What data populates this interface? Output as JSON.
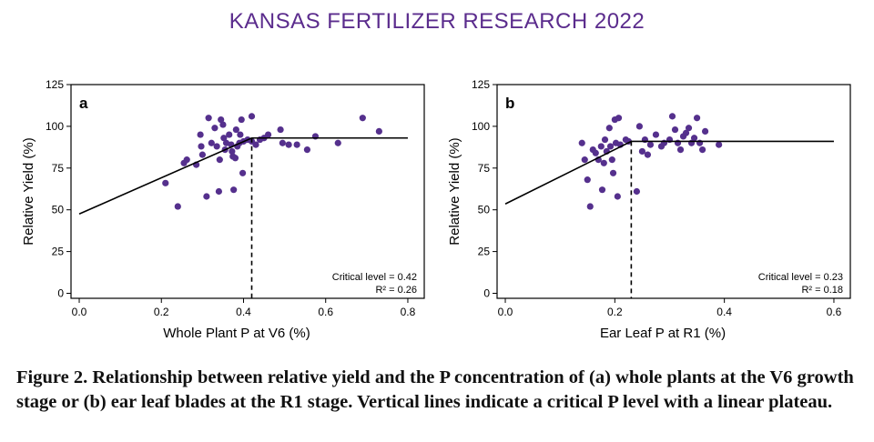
{
  "header": {
    "title": "KANSAS FERTILIZER RESEARCH 2022"
  },
  "caption": "Figure 2. Relationship between relative yield and the P concentration of (a) whole plants at the V6 growth stage or (b) ear leaf blades at the R1 stage. Vertical lines indicate a critical P level with a linear plateau.",
  "colors": {
    "point": "#55308d",
    "line": "#000000",
    "header": "#5b2c8d"
  },
  "chart_data": [
    {
      "type": "scatter",
      "panel_label": "a",
      "xlabel": "Whole Plant P at V6 (%)",
      "ylabel": "Relative Yield (%)",
      "xlim": [
        -0.02,
        0.84
      ],
      "ylim": [
        -3,
        125
      ],
      "xticks": [
        0.0,
        0.2,
        0.4,
        0.6,
        0.8
      ],
      "xtick_labels": [
        "0.0",
        "0.2",
        "0.4",
        "0.6",
        "0.8"
      ],
      "yticks": [
        0,
        25,
        50,
        75,
        100,
        125
      ],
      "ytick_labels": [
        "0",
        "25",
        "50",
        "75",
        "100",
        "125"
      ],
      "annotation_lines": [
        "Critical level = 0.42",
        "R² = 0.26"
      ],
      "fit": {
        "intercept": 47.5,
        "slope": 107.9,
        "critical": 0.42,
        "plateau": 93,
        "x_end": 0.8
      },
      "points": [
        {
          "x": 0.21,
          "y": 66
        },
        {
          "x": 0.24,
          "y": 52
        },
        {
          "x": 0.255,
          "y": 78
        },
        {
          "x": 0.262,
          "y": 80
        },
        {
          "x": 0.285,
          "y": 77
        },
        {
          "x": 0.295,
          "y": 95
        },
        {
          "x": 0.297,
          "y": 88
        },
        {
          "x": 0.3,
          "y": 83
        },
        {
          "x": 0.31,
          "y": 58
        },
        {
          "x": 0.315,
          "y": 105
        },
        {
          "x": 0.322,
          "y": 90
        },
        {
          "x": 0.33,
          "y": 99
        },
        {
          "x": 0.335,
          "y": 88
        },
        {
          "x": 0.34,
          "y": 61
        },
        {
          "x": 0.342,
          "y": 80
        },
        {
          "x": 0.345,
          "y": 104
        },
        {
          "x": 0.35,
          "y": 101
        },
        {
          "x": 0.352,
          "y": 93
        },
        {
          "x": 0.355,
          "y": 86
        },
        {
          "x": 0.358,
          "y": 90
        },
        {
          "x": 0.365,
          "y": 95
        },
        {
          "x": 0.37,
          "y": 89
        },
        {
          "x": 0.372,
          "y": 85
        },
        {
          "x": 0.374,
          "y": 82
        },
        {
          "x": 0.376,
          "y": 62
        },
        {
          "x": 0.38,
          "y": 81
        },
        {
          "x": 0.382,
          "y": 98
        },
        {
          "x": 0.385,
          "y": 88
        },
        {
          "x": 0.39,
          "y": 90
        },
        {
          "x": 0.392,
          "y": 95
        },
        {
          "x": 0.395,
          "y": 104
        },
        {
          "x": 0.398,
          "y": 72
        },
        {
          "x": 0.4,
          "y": 91
        },
        {
          "x": 0.41,
          "y": 92
        },
        {
          "x": 0.42,
          "y": 91
        },
        {
          "x": 0.42,
          "y": 106
        },
        {
          "x": 0.43,
          "y": 89
        },
        {
          "x": 0.44,
          "y": 92
        },
        {
          "x": 0.45,
          "y": 93
        },
        {
          "x": 0.46,
          "y": 95
        },
        {
          "x": 0.49,
          "y": 98
        },
        {
          "x": 0.495,
          "y": 90
        },
        {
          "x": 0.51,
          "y": 89
        },
        {
          "x": 0.53,
          "y": 89
        },
        {
          "x": 0.555,
          "y": 86
        },
        {
          "x": 0.575,
          "y": 94
        },
        {
          "x": 0.63,
          "y": 90
        },
        {
          "x": 0.69,
          "y": 105
        },
        {
          "x": 0.73,
          "y": 97
        }
      ]
    },
    {
      "type": "scatter",
      "panel_label": "b",
      "xlabel": "Ear Leaf P at R1 (%)",
      "ylabel": "Relative Yield (%)",
      "xlim": [
        -0.015,
        0.63
      ],
      "ylim": [
        -3,
        125
      ],
      "xticks": [
        0.0,
        0.2,
        0.4,
        0.6
      ],
      "xtick_labels": [
        "0.0",
        "0.2",
        "0.4",
        "0.6"
      ],
      "yticks": [
        0,
        25,
        50,
        75,
        100,
        125
      ],
      "ytick_labels": [
        "0",
        "25",
        "50",
        "75",
        "100",
        "125"
      ],
      "annotation_lines": [
        "Critical level = 0.23",
        "R² = 0.18"
      ],
      "fit": {
        "intercept": 53.5,
        "slope": 163.0,
        "critical": 0.23,
        "plateau": 91,
        "x_end": 0.6
      },
      "points": [
        {
          "x": 0.14,
          "y": 90
        },
        {
          "x": 0.145,
          "y": 80
        },
        {
          "x": 0.15,
          "y": 68
        },
        {
          "x": 0.155,
          "y": 52
        },
        {
          "x": 0.16,
          "y": 86
        },
        {
          "x": 0.165,
          "y": 84
        },
        {
          "x": 0.17,
          "y": 80
        },
        {
          "x": 0.175,
          "y": 88
        },
        {
          "x": 0.177,
          "y": 62
        },
        {
          "x": 0.18,
          "y": 78
        },
        {
          "x": 0.182,
          "y": 92
        },
        {
          "x": 0.185,
          "y": 85
        },
        {
          "x": 0.19,
          "y": 99
        },
        {
          "x": 0.192,
          "y": 88
        },
        {
          "x": 0.195,
          "y": 80
        },
        {
          "x": 0.197,
          "y": 72
        },
        {
          "x": 0.2,
          "y": 104
        },
        {
          "x": 0.202,
          "y": 90
        },
        {
          "x": 0.205,
          "y": 58
        },
        {
          "x": 0.207,
          "y": 105
        },
        {
          "x": 0.21,
          "y": 89
        },
        {
          "x": 0.22,
          "y": 92
        },
        {
          "x": 0.225,
          "y": 91
        },
        {
          "x": 0.24,
          "y": 61
        },
        {
          "x": 0.245,
          "y": 100
        },
        {
          "x": 0.25,
          "y": 85
        },
        {
          "x": 0.255,
          "y": 92
        },
        {
          "x": 0.26,
          "y": 83
        },
        {
          "x": 0.265,
          "y": 89
        },
        {
          "x": 0.275,
          "y": 95
        },
        {
          "x": 0.285,
          "y": 88
        },
        {
          "x": 0.29,
          "y": 90
        },
        {
          "x": 0.3,
          "y": 92
        },
        {
          "x": 0.305,
          "y": 106
        },
        {
          "x": 0.31,
          "y": 98
        },
        {
          "x": 0.315,
          "y": 90
        },
        {
          "x": 0.32,
          "y": 86
        },
        {
          "x": 0.325,
          "y": 94
        },
        {
          "x": 0.33,
          "y": 96
        },
        {
          "x": 0.335,
          "y": 99
        },
        {
          "x": 0.34,
          "y": 90
        },
        {
          "x": 0.345,
          "y": 93
        },
        {
          "x": 0.35,
          "y": 105
        },
        {
          "x": 0.355,
          "y": 90
        },
        {
          "x": 0.36,
          "y": 86
        },
        {
          "x": 0.365,
          "y": 97
        },
        {
          "x": 0.39,
          "y": 89
        }
      ]
    }
  ]
}
